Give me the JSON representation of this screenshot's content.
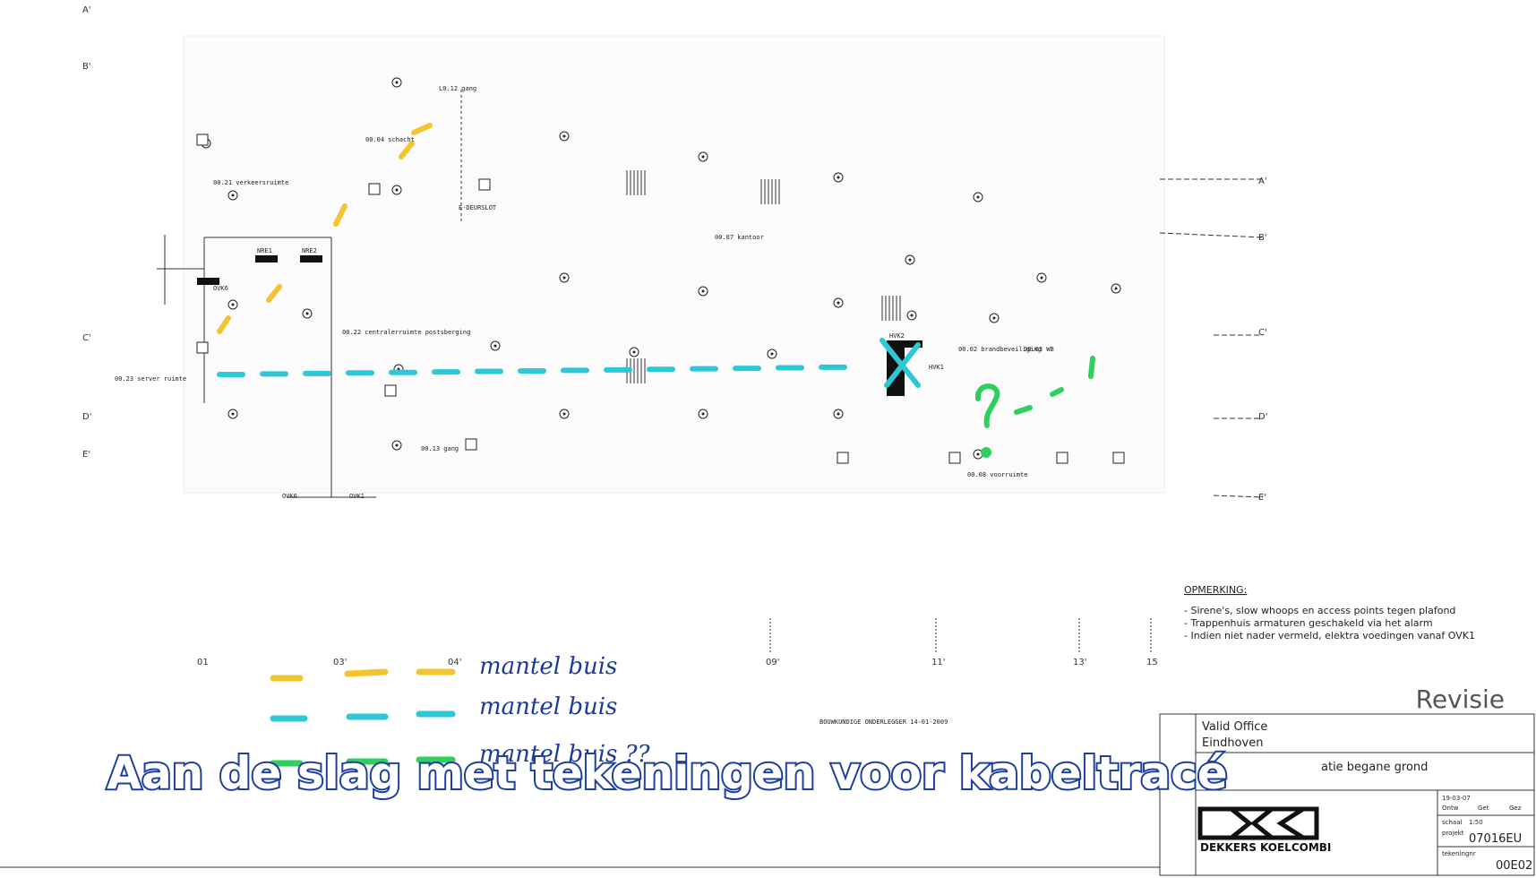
{
  "caption": "Aan de slag met tekeningen voor kabeltracé",
  "grid_labels": {
    "left": [
      "A'",
      "B'",
      "C'",
      "D'",
      "E'"
    ],
    "right": [
      "A'",
      "B'",
      "C'",
      "D'",
      "E'"
    ],
    "bottom": [
      "01",
      "03'",
      "04'",
      "09'",
      "11'",
      "13'",
      "15"
    ]
  },
  "rooms": [
    "L0.12 gang",
    "00.04 schacht",
    "00.21 verkeersruimte",
    "00.22 centralerruimte postsberging",
    "00.23 server ruimte",
    "00.13 gang",
    "00.07 kantoor",
    "00.02 brandbeveiliging",
    "00.03 WB",
    "00.08 voorruimte"
  ],
  "equipment": [
    "NRE1",
    "NRE2",
    "OVK6",
    "HVK2",
    "HVK1",
    "OVK6",
    "OVK1",
    "E-DEURSLOT"
  ],
  "underlay": "BOUWKUNDIGE ONDERLEGGER 14-01-2009",
  "notes": {
    "heading": "OPMERKING:",
    "items": [
      "- Sirene's, slow whoops en access points tegen plafond",
      "- Trappenhuis armaturen geschakeld via het alarm",
      "- Indien niet nader vermeld, elektra voedingen vanaf OVK1"
    ]
  },
  "legend": [
    "mantel buis",
    "mantel buis",
    "mantel buis ??"
  ],
  "revision": "Revisie",
  "title_block": {
    "client": "Valid Office",
    "city": "Eindhoven",
    "subject": "atie begane grond",
    "company": "DEKKERS KOELCOMBI",
    "date": "19-03-07",
    "drawn": "Ontw",
    "checked": "Get",
    "approved": "Gez",
    "scale_label": "schaal",
    "scale": "1:50",
    "project_label": "projekt",
    "project": "07016EU",
    "drawing_label": "tekeningnr",
    "drawing": "00E02"
  }
}
